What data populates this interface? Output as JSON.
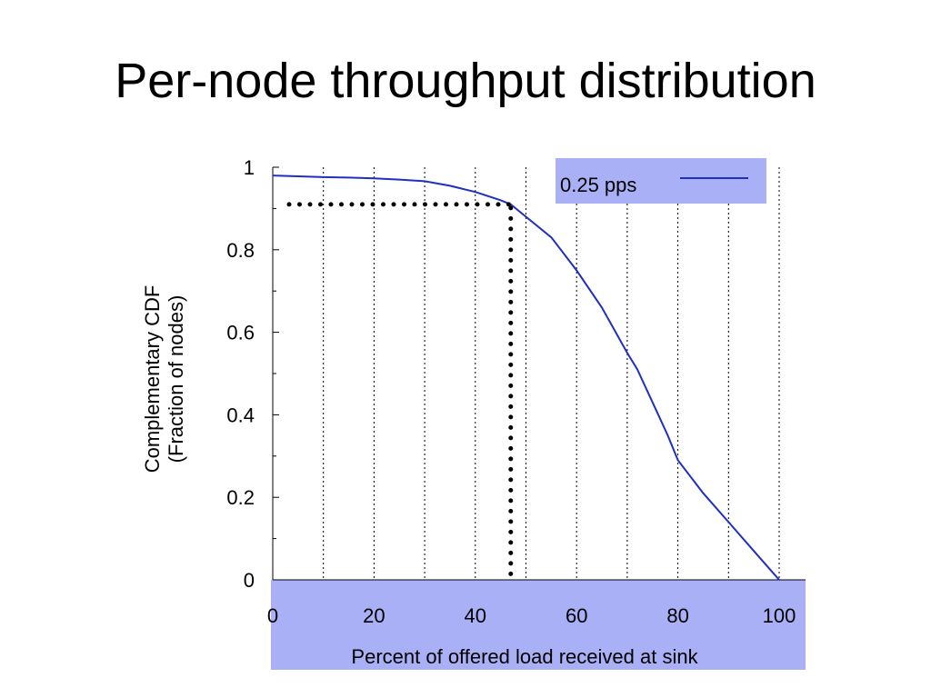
{
  "slide": {
    "title": "Per-node throughput distribution"
  },
  "chart_data": {
    "type": "line",
    "xlabel": "Percent of offered load received at sink",
    "ylabel_lines": [
      "Complementary CDF",
      "(Fraction of nodes)"
    ],
    "xlim": [
      0,
      100
    ],
    "ylim": [
      0,
      1
    ],
    "x_ticks": [
      0,
      20,
      40,
      60,
      80,
      100
    ],
    "x_tick_labels": [
      "0",
      "20",
      "40",
      "60",
      "80",
      "100"
    ],
    "y_ticks": [
      0,
      0.2,
      0.4,
      0.6,
      0.8,
      1
    ],
    "y_tick_labels": [
      "0",
      "0.2",
      "0.4",
      "0.6",
      "0.8",
      "1"
    ],
    "x_minor_ticks": [
      10,
      30,
      50,
      70,
      90
    ],
    "y_minor_ticks": [
      0.1,
      0.3,
      0.5,
      0.7,
      0.9
    ],
    "grid": "vertical-dotted",
    "legend_position": "top-right",
    "series": [
      {
        "name": "0.25 pps",
        "color": "#1f2fbf",
        "x": [
          0,
          5,
          10,
          15,
          20,
          25,
          30,
          35,
          40,
          45,
          47,
          50,
          55,
          60,
          65,
          70,
          72,
          75,
          78,
          80,
          85,
          90,
          95,
          100
        ],
        "y": [
          0.98,
          0.978,
          0.976,
          0.975,
          0.973,
          0.97,
          0.966,
          0.955,
          0.94,
          0.92,
          0.91,
          0.88,
          0.83,
          0.75,
          0.66,
          0.55,
          0.51,
          0.43,
          0.35,
          0.29,
          0.21,
          0.14,
          0.07,
          0.0
        ]
      }
    ],
    "annotation": {
      "type": "dotted-guide",
      "x": 47,
      "y": 0.91,
      "color": "#000000"
    },
    "panel_color": "#aab0f5"
  }
}
